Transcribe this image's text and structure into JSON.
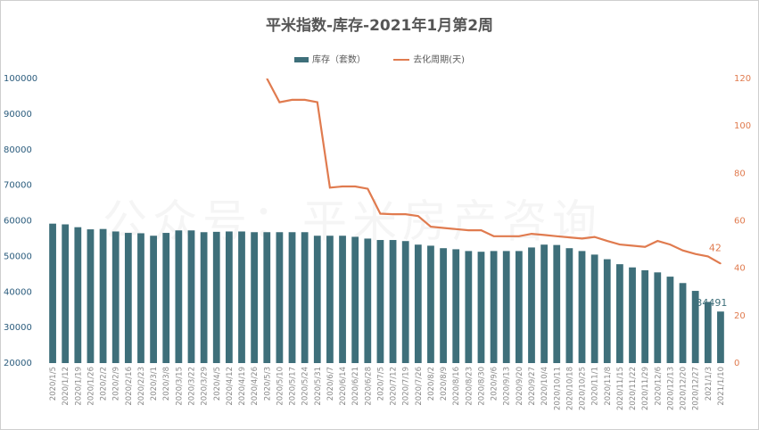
{
  "chart_data": {
    "type": "bar",
    "title": "平米指数-库存-2021年1月第2周",
    "watermark": "公众号：平米房产咨询",
    "legend": {
      "bar_label": "库存（套数）",
      "line_label": "去化周期(天)",
      "placement": "top-center"
    },
    "categories": [
      "2020/1/5",
      "2020/1/12",
      "2020/1/19",
      "2020/1/26",
      "2020/2/2",
      "2020/2/9",
      "2020/2/16",
      "2020/2/23",
      "2020/3/1",
      "2020/3/8",
      "2020/3/15",
      "2020/3/22",
      "2020/3/29",
      "2020/4/5",
      "2020/4/12",
      "2020/4/19",
      "2020/4/26",
      "2020/5/3",
      "2020/5/10",
      "2020/5/17",
      "2020/5/24",
      "2020/5/31",
      "2020/6/7",
      "2020/6/14",
      "2020/6/21",
      "2020/6/28",
      "2020/7/5",
      "2020/7/12",
      "2020/7/19",
      "2020/7/26",
      "2020/8/2",
      "2020/8/9",
      "2020/8/16",
      "2020/8/23",
      "2020/8/30",
      "2020/9/6",
      "2020/9/13",
      "2020/9/20",
      "2020/9/27",
      "2020/10/4",
      "2020/10/11",
      "2020/10/18",
      "2020/10/25",
      "2020/11/1",
      "2020/11/8",
      "2020/11/15",
      "2020/11/22",
      "2020/11/29",
      "2020/12/6",
      "2020/12/13",
      "2020/12/20",
      "2020/12/27",
      "2021/1/3",
      "2021/1/10"
    ],
    "series": [
      {
        "name": "库存（套数）",
        "type": "bar",
        "axis": "left",
        "color": "#3e6f7a",
        "values": [
          59200,
          59000,
          58200,
          57600,
          57700,
          57000,
          56600,
          56500,
          55800,
          56600,
          57300,
          57300,
          56800,
          56900,
          57000,
          57000,
          56800,
          56800,
          56800,
          56800,
          56800,
          55800,
          55800,
          55800,
          55500,
          55000,
          54600,
          54600,
          54300,
          53300,
          53000,
          52300,
          52000,
          51500,
          51300,
          51500,
          51500,
          51500,
          52500,
          53300,
          53200,
          52300,
          51500,
          50500,
          49200,
          47800,
          46900,
          46100,
          45500,
          44300,
          42500,
          40300,
          37200,
          34491
        ]
      },
      {
        "name": "去化周期(天)",
        "type": "line",
        "axis": "right",
        "color": "#e07b4f",
        "values": [
          null,
          null,
          null,
          null,
          null,
          null,
          null,
          null,
          null,
          null,
          null,
          null,
          null,
          null,
          null,
          null,
          null,
          120,
          110,
          111,
          111,
          110,
          74,
          74.5,
          74.5,
          73.5,
          63,
          62.8,
          62.8,
          62,
          57.5,
          57,
          56.5,
          56,
          56,
          53.5,
          53.5,
          53.5,
          54.5,
          54,
          53.5,
          53,
          52.5,
          53.2,
          51.5,
          50,
          49.5,
          49,
          51.5,
          50,
          47.5,
          46,
          45,
          42
        ]
      }
    ],
    "y_left": {
      "min": 20000,
      "max": 100000,
      "ticks": [
        20000,
        30000,
        40000,
        50000,
        60000,
        70000,
        80000,
        90000,
        100000
      ]
    },
    "y_right": {
      "min": 0,
      "max": 120,
      "ticks": [
        0,
        20,
        40,
        60,
        80,
        100,
        120
      ]
    },
    "data_labels": {
      "last_bar": "34491",
      "last_line": "42"
    },
    "grid": false
  }
}
